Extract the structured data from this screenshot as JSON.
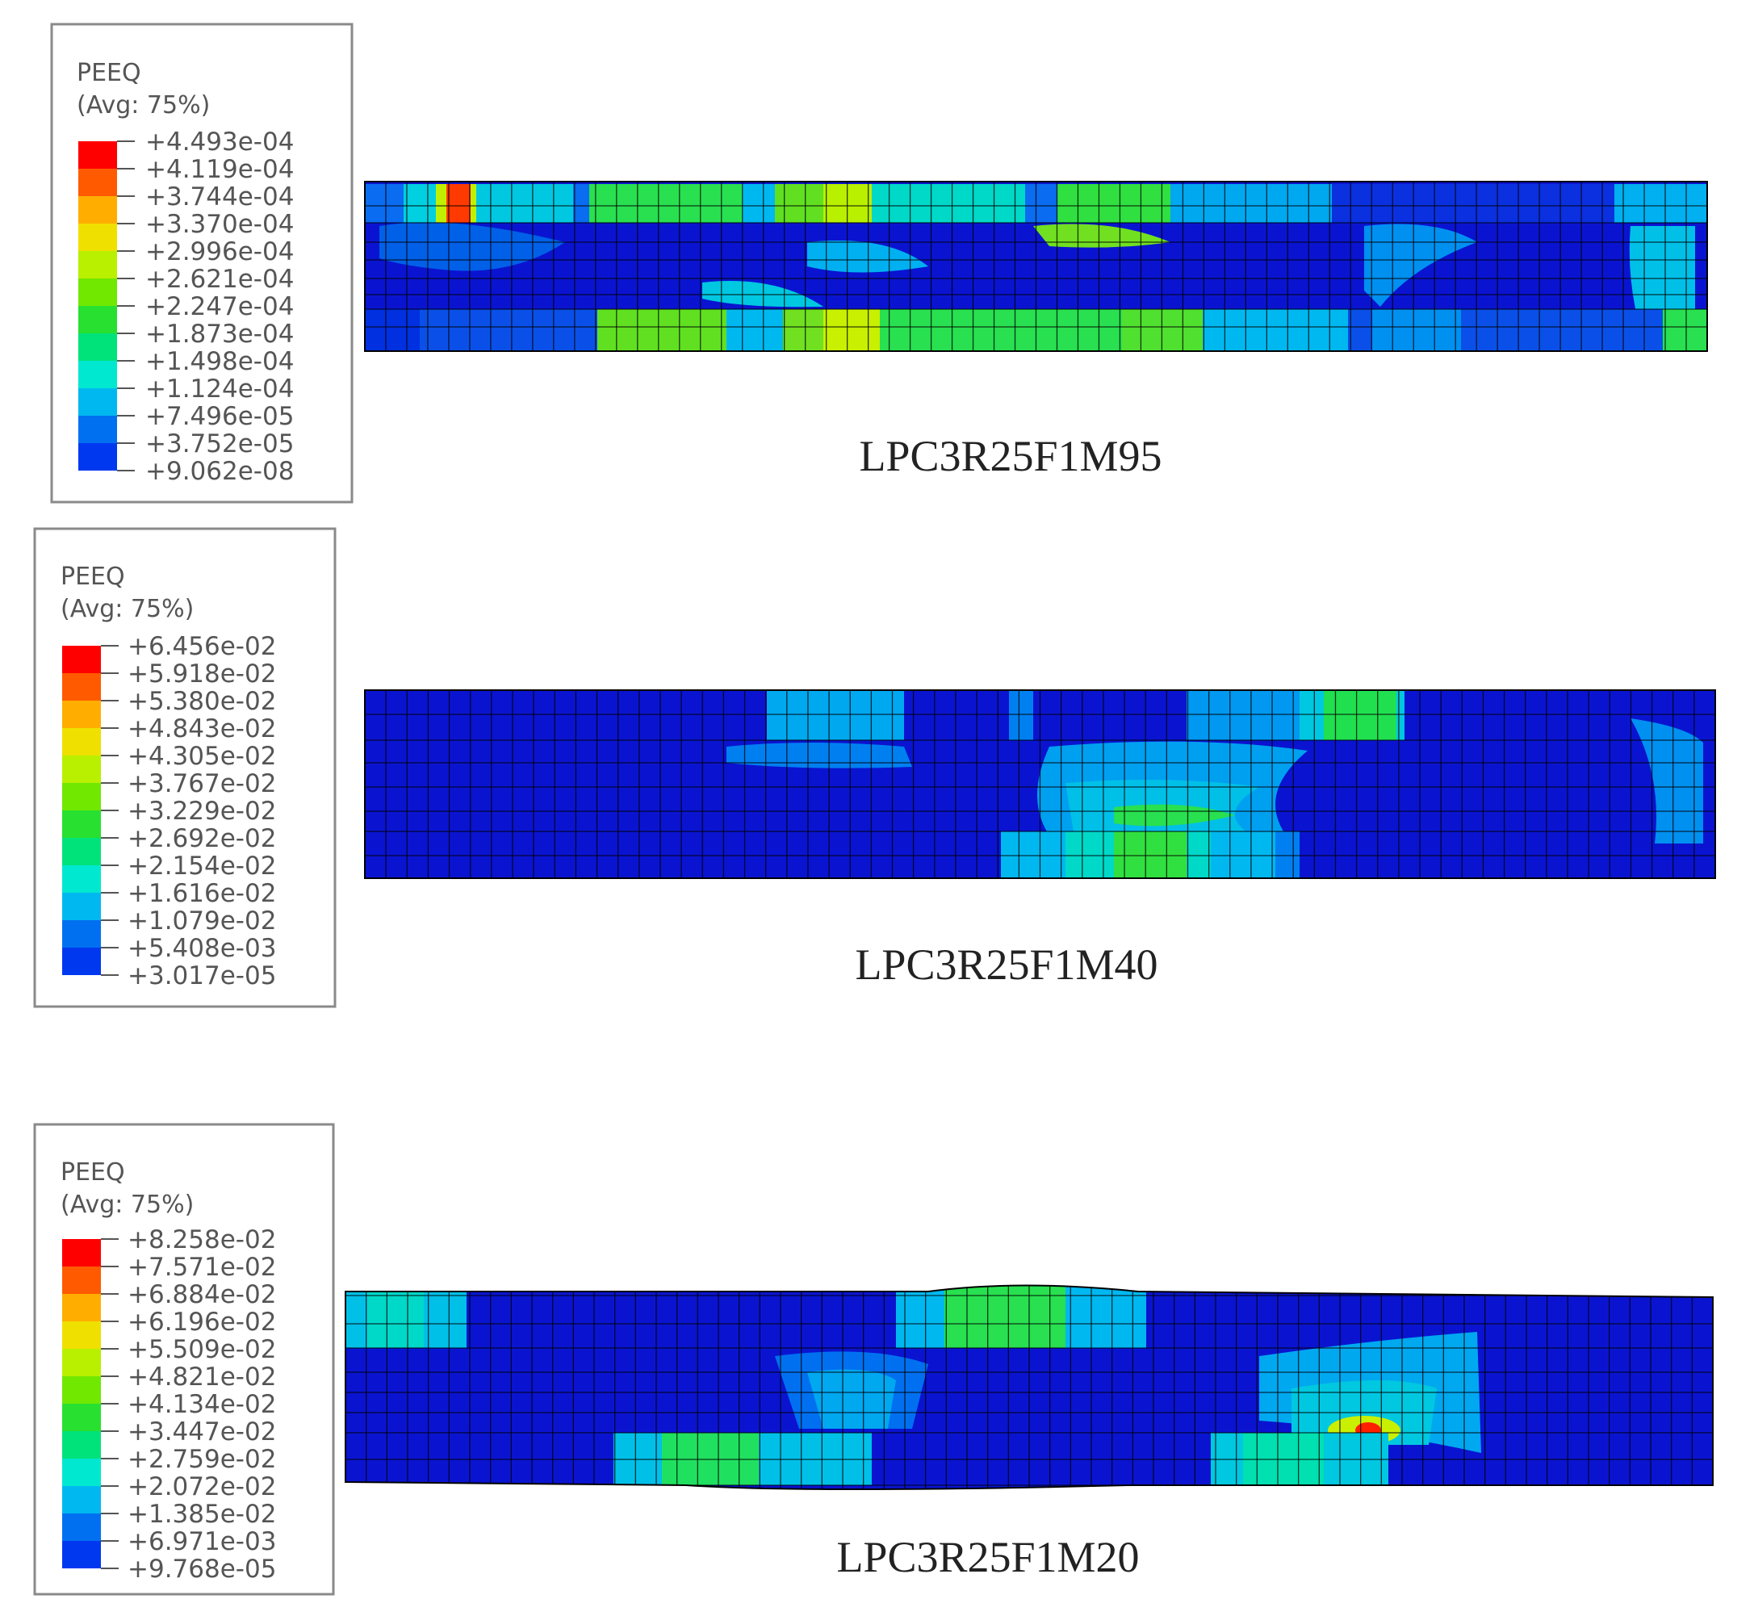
{
  "panels": [
    {
      "caption": "LPC3R25F1M95",
      "legend": {
        "variable": "PEEQ",
        "averaging": "(Avg: 75%)",
        "values": [
          "+4.493e-04",
          "+4.119e-04",
          "+3.744e-04",
          "+3.370e-04",
          "+2.996e-04",
          "+2.621e-04",
          "+2.247e-04",
          "+1.873e-04",
          "+1.498e-04",
          "+1.124e-04",
          "+7.496e-05",
          "+3.752e-05",
          "+9.062e-08"
        ]
      }
    },
    {
      "caption": "LPC3R25F1M40",
      "legend": {
        "variable": "PEEQ",
        "averaging": "(Avg: 75%)",
        "values": [
          "+6.456e-02",
          "+5.918e-02",
          "+5.380e-02",
          "+4.843e-02",
          "+4.305e-02",
          "+3.767e-02",
          "+3.229e-02",
          "+2.692e-02",
          "+2.154e-02",
          "+1.616e-02",
          "+1.079e-02",
          "+5.408e-03",
          "+3.017e-05"
        ]
      }
    },
    {
      "caption": "LPC3R25F1M20",
      "legend": {
        "variable": "PEEQ",
        "averaging": "(Avg: 75%)",
        "values": [
          "+8.258e-02",
          "+7.571e-02",
          "+6.884e-02",
          "+6.196e-02",
          "+5.509e-02",
          "+4.821e-02",
          "+4.134e-02",
          "+3.447e-02",
          "+2.759e-02",
          "+2.072e-02",
          "+1.385e-02",
          "+6.971e-03",
          "+9.768e-05"
        ]
      }
    }
  ],
  "colormap": [
    "#ff0000",
    "#ff5a00",
    "#ffae00",
    "#f0e000",
    "#b8f000",
    "#70e800",
    "#28e030",
    "#00e27a",
    "#00e8d0",
    "#00b8f0",
    "#0070f0",
    "#0038f0",
    "#0000f0"
  ]
}
